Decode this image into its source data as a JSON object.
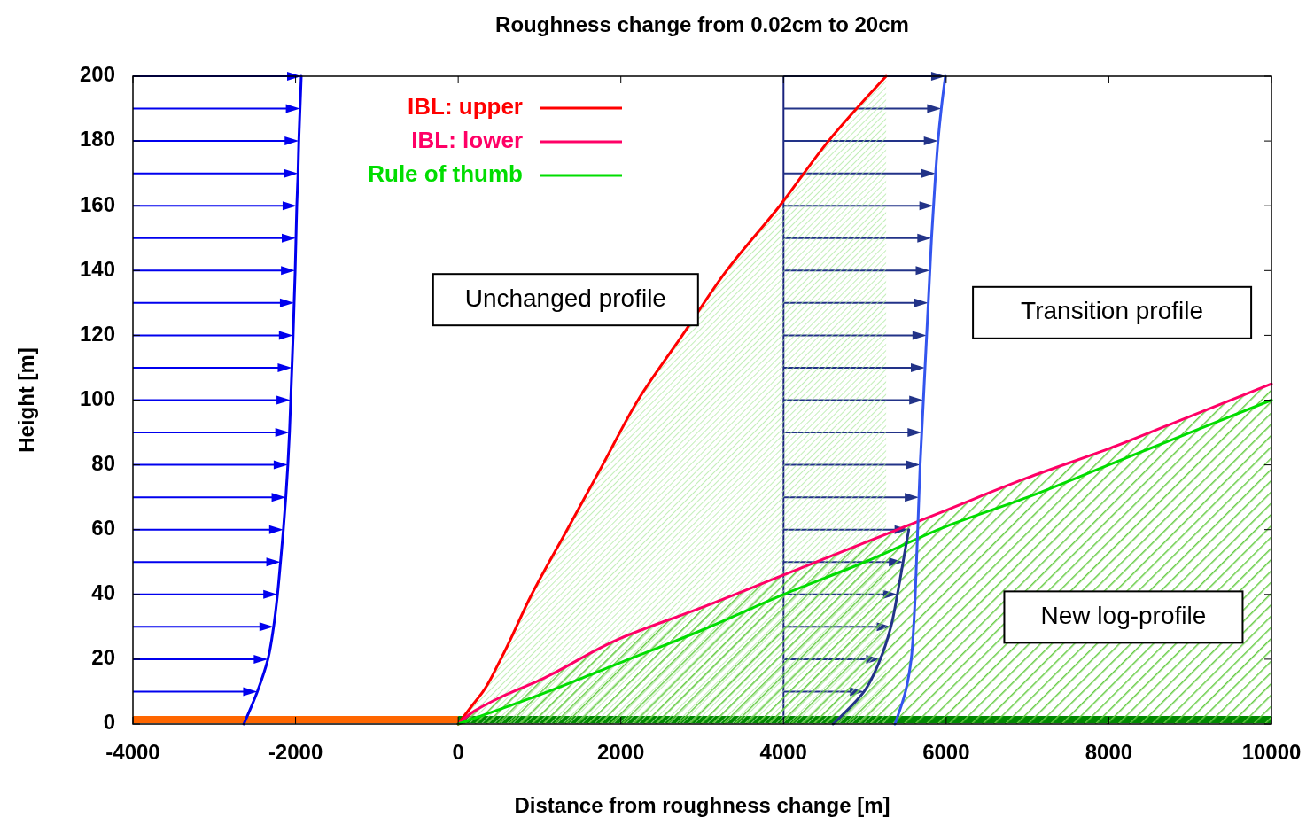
{
  "chart_data": {
    "type": "line",
    "title": "Roughness change from 0.02cm to 20cm",
    "xlabel": "Distance from roughness change [m]",
    "ylabel": "Height [m]",
    "xlim": [
      -4000,
      10000
    ],
    "xticks": [
      -4000,
      -2000,
      0,
      2000,
      4000,
      6000,
      8000,
      10000
    ],
    "ylim": [
      0,
      200
    ],
    "yticks": [
      0,
      20,
      40,
      60,
      80,
      100,
      120,
      140,
      160,
      180,
      200
    ],
    "legend": "top left",
    "series": [
      {
        "name": "IBL: upper",
        "type": "area",
        "color": "#ff0000",
        "x": [
          0,
          150,
          305,
          523,
          904,
          1340,
          1776,
          2211,
          2756,
          3300,
          3954,
          4553,
          5262
        ],
        "values": [
          0,
          5,
          10,
          20,
          40,
          60,
          80,
          100,
          120,
          140,
          160,
          180,
          200
        ]
      },
      {
        "name": "IBL: lower",
        "type": "area",
        "color": "#ff0066",
        "x": [
          0,
          200,
          500,
          1000,
          2000,
          3000,
          4000,
          5000,
          6000,
          7000,
          8000,
          9000,
          10000
        ],
        "values": [
          0,
          4,
          8,
          13.5,
          26.5,
          36,
          46,
          56,
          66,
          76,
          85,
          95,
          105
        ]
      },
      {
        "name": "Rule of thumb",
        "color": "#00dd00",
        "x": [
          0,
          1000,
          2000,
          3000,
          4000,
          5000,
          6000,
          7000,
          8000,
          9000,
          10000
        ],
        "values": [
          0,
          9,
          19,
          29,
          40,
          50,
          61,
          70,
          80,
          90,
          100
        ]
      },
      {
        "color": "#0000ee",
        "x": [
          -2636,
          -2470,
          -2340,
          -2270,
          -2222,
          -2185,
          -2150,
          -2120,
          -2095,
          -2075,
          -2060,
          -2045,
          -2030,
          -2018,
          -2005,
          -1995,
          -1985,
          -1970,
          -1960,
          -1945,
          -1930
        ],
        "values": [
          0,
          10,
          20,
          30,
          40,
          50,
          60,
          70,
          80,
          90,
          100,
          110,
          120,
          130,
          140,
          150,
          160,
          170,
          180,
          190,
          200
        ]
      },
      {
        "color": "#223388",
        "x": [
          4610,
          4990,
          5190,
          5320,
          5400,
          5470,
          5540
        ],
        "values": [
          0,
          10,
          20,
          30,
          40,
          50,
          60
        ]
      },
      {
        "color": "#3355ee",
        "x": [
          5370,
          5500,
          5570,
          5600,
          5620,
          5635,
          5650,
          5665,
          5680,
          5700,
          5720,
          5740,
          5760,
          5780,
          5800,
          5820,
          5845,
          5870,
          5900,
          5940,
          5990
        ],
        "values": [
          0,
          10,
          20,
          30,
          40,
          50,
          60,
          70,
          80,
          90,
          100,
          110,
          120,
          130,
          140,
          150,
          160,
          170,
          180,
          190,
          200
        ]
      }
    ],
    "ref_lines": [
      {
        "axis": "x",
        "value": 4000,
        "color": "#1a237e"
      }
    ],
    "annotations": [
      "Unchanged profile",
      "Transition profile",
      "New log-profile"
    ]
  }
}
